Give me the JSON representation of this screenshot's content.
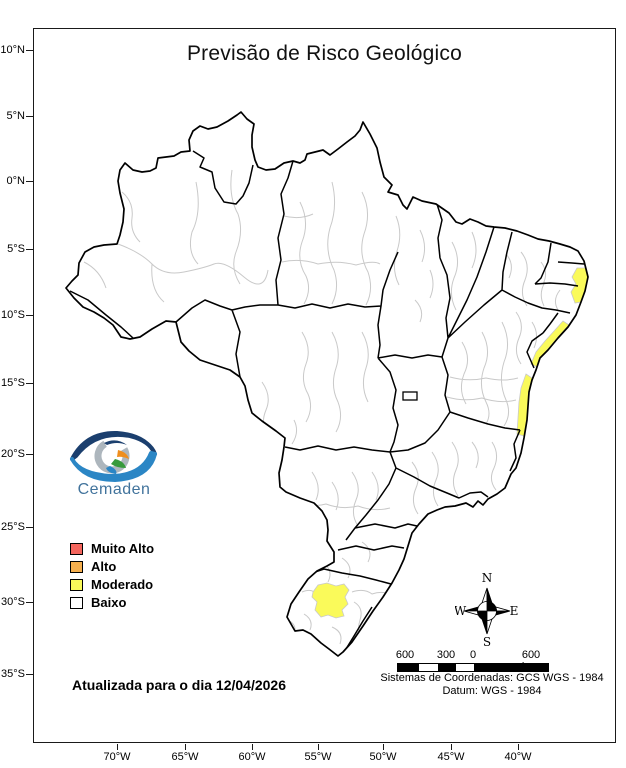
{
  "title": "Previsão de Risco Geológico",
  "logo": {
    "text": "Cemaden"
  },
  "legend": {
    "items": [
      {
        "label": "Muito Alto",
        "color": "#F4655D"
      },
      {
        "label": "Alto",
        "color": "#F5AF4E"
      },
      {
        "label": "Moderado",
        "color": "#FAFA5A"
      },
      {
        "label": "Baixo",
        "color": "#FFFFFF"
      }
    ]
  },
  "update_note": "Atualizada para o dia 12/04/2026",
  "axes": {
    "latitude_labels": [
      "10°N",
      "5°N",
      "0°N",
      "5°S",
      "10°S",
      "15°S",
      "20°S",
      "25°S",
      "30°S",
      "35°S"
    ],
    "longitude_labels": [
      "70°W",
      "65°W",
      "60°W",
      "55°W",
      "50°W",
      "45°W",
      "40°W"
    ]
  },
  "compass": {
    "n": "N",
    "s": "S",
    "e": "E",
    "w": "W"
  },
  "scale_bar": {
    "labels": [
      "600",
      "300",
      "0",
      "600 km"
    ]
  },
  "coordinate_system": {
    "line1": "Sistemas de Coordenadas: GCS WGS - 1984",
    "line2": "Datum: WGS - 1984"
  },
  "map": {
    "colors": {
      "country_fill": "#FFFFFF",
      "state_border": "#000000",
      "municipal_border": "#C9C9C9",
      "moderado_patch": "#FAFA5A"
    },
    "risk_patches": [
      {
        "area": "litoral Paraíba-Pernambuco",
        "level": "Moderado"
      },
      {
        "area": "litoral Alagoas-Sergipe",
        "level": "Moderado"
      },
      {
        "area": "litoral sul da Bahia",
        "level": "Moderado"
      },
      {
        "area": "centro do Rio Grande do Sul",
        "level": "Moderado"
      }
    ]
  }
}
